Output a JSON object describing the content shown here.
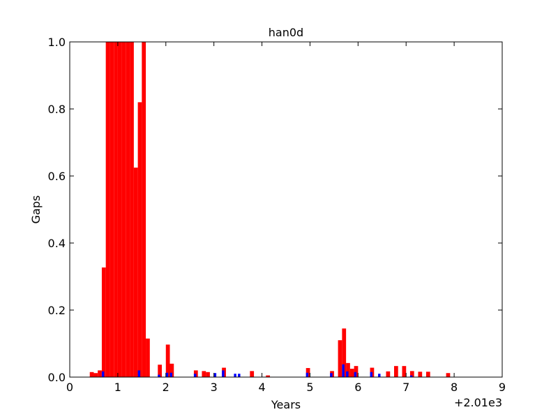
{
  "chart_data": {
    "type": "bar",
    "title": "han0d",
    "x_label": "Years",
    "y_label": "Gaps",
    "x_offset_label": "+2.01e3",
    "series": [
      {
        "color": "#ff0000",
        "x": [
          0.417,
          0.5,
          0.583,
          0.667,
          0.75,
          0.833,
          0.917,
          1.0,
          1.083,
          1.167,
          1.25,
          1.333,
          1.417,
          1.5,
          1.583,
          1.833,
          2.0,
          2.083,
          2.583,
          2.75,
          2.833,
          3.167,
          3.75,
          4.083,
          4.917,
          5.417,
          5.583,
          5.667,
          5.75,
          5.833,
          5.917,
          6.25,
          6.583,
          6.75,
          6.917,
          7.083,
          7.25,
          7.417,
          7.833
        ],
        "values": [
          0.015,
          0.012,
          0.02,
          0.327,
          1.0,
          1.0,
          1.0,
          1.0,
          1.0,
          1.0,
          1.0,
          0.625,
          0.82,
          1.0,
          0.115,
          0.037,
          0.097,
          0.04,
          0.02,
          0.018,
          0.015,
          0.028,
          0.018,
          0.005,
          0.027,
          0.018,
          0.11,
          0.145,
          0.042,
          0.025,
          0.033,
          0.028,
          0.017,
          0.033,
          0.033,
          0.018,
          0.016,
          0.016,
          0.012
        ]
      },
      {
        "color": "#0000ff",
        "x": [
          0.667,
          1.417,
          1.833,
          2.0,
          2.083,
          2.583,
          3.0,
          3.167,
          3.417,
          3.5,
          4.917,
          5.417,
          5.667,
          5.75,
          5.917,
          6.25,
          6.417,
          7.083
        ],
        "values": [
          0.017,
          0.02,
          0.007,
          0.013,
          0.013,
          0.01,
          0.012,
          0.02,
          0.01,
          0.01,
          0.013,
          0.012,
          0.038,
          0.017,
          0.015,
          0.015,
          0.01,
          0.005
        ]
      }
    ],
    "xlim": [
      0,
      9
    ],
    "xticks": [
      0,
      1,
      2,
      3,
      4,
      5,
      6,
      7,
      8,
      9
    ],
    "ylim": [
      0,
      1
    ],
    "yticks": [
      {
        "value": 0,
        "label": "0.0"
      },
      0.2,
      0.4,
      0.6,
      0.8,
      {
        "value": 1,
        "label": "1.0"
      }
    ]
  }
}
